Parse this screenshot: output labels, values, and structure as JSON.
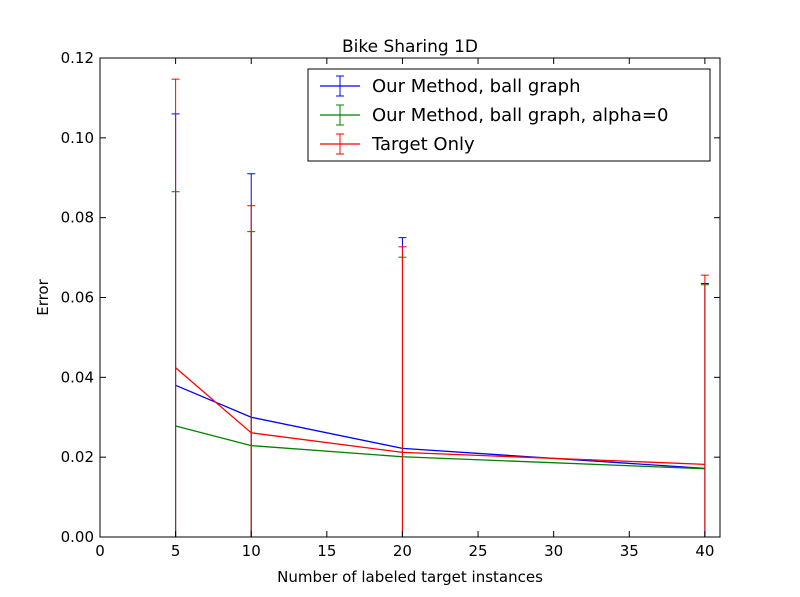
{
  "chart_data": {
    "type": "line",
    "title": "Bike Sharing 1D",
    "xlabel": "Number of labeled target instances",
    "ylabel": "Error",
    "xlim": [
      0,
      41
    ],
    "ylim": [
      0,
      0.12
    ],
    "x": [
      5,
      10,
      20,
      40
    ],
    "x_ticks": [
      0,
      5,
      10,
      15,
      20,
      25,
      30,
      35,
      40
    ],
    "x_tick_labels": [
      "0",
      "5",
      "10",
      "15",
      "20",
      "25",
      "30",
      "35",
      "40"
    ],
    "y_ticks": [
      0,
      0.02,
      0.04,
      0.06,
      0.08,
      0.1,
      0.12
    ],
    "y_tick_labels": [
      "0.00",
      "0.02",
      "0.04",
      "0.06",
      "0.08",
      "0.10",
      "0.12"
    ],
    "grid": false,
    "legend_position": "top-right",
    "series": [
      {
        "name": "Our Method, ball graph",
        "color": "#0000ff",
        "values": [
          0.038,
          0.03,
          0.0222,
          0.0172
        ],
        "error_upper": [
          0.106,
          0.091,
          0.075,
          0.0635
        ],
        "error_lower": [
          0,
          0,
          0,
          0
        ]
      },
      {
        "name": "Our Method, ball graph, alpha=0",
        "color": "#008000",
        "values": [
          0.0278,
          0.0229,
          0.0201,
          0.0171
        ],
        "error_upper": [
          0.0865,
          0.0765,
          0.0701,
          0.0632
        ],
        "error_lower": [
          0,
          0,
          0,
          0
        ]
      },
      {
        "name": "Target Only",
        "color": "#ff0000",
        "values": [
          0.0424,
          0.0261,
          0.0212,
          0.0182
        ],
        "error_upper": [
          0.1147,
          0.083,
          0.0727,
          0.0656
        ],
        "error_lower": [
          0,
          0,
          0,
          0
        ]
      }
    ]
  }
}
